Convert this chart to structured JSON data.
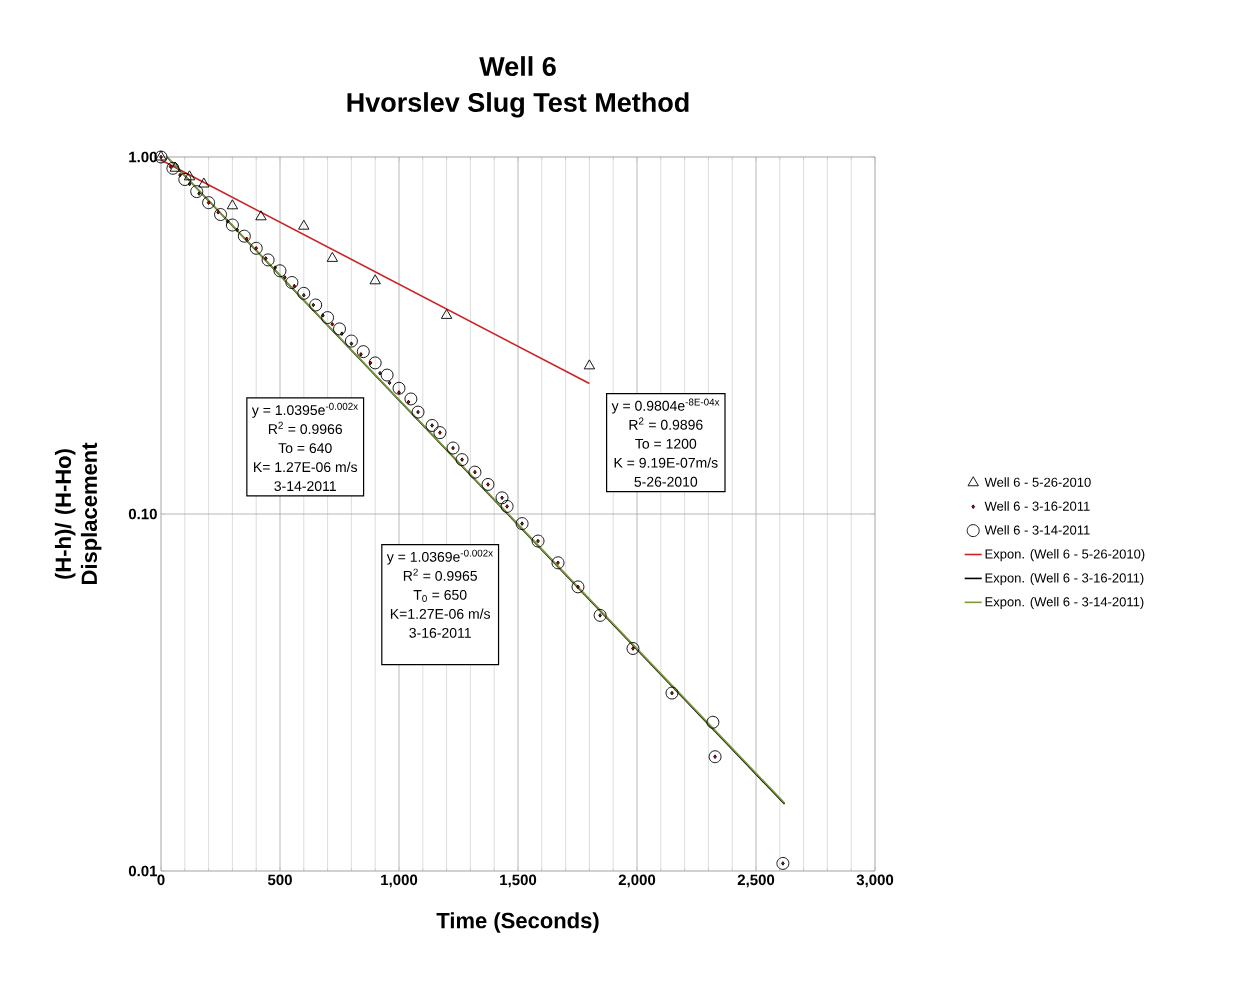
{
  "chart_data": {
    "type": "scatter",
    "title": "Well 6",
    "subtitle": "Hvorslev Slug Test Method",
    "xlabel": "Time (Seconds)",
    "ylabel": "(H-h)/ (H-Ho) Displacement",
    "xlim": [
      0,
      3000
    ],
    "ylim": [
      0.01,
      1
    ],
    "log": "y",
    "grid": true,
    "legend": "right",
    "xticks": [
      0,
      500,
      {
        "value": 1000,
        "label": "1,000"
      },
      {
        "value": 1500,
        "label": "1,500"
      },
      {
        "value": 2000,
        "label": "2,000"
      },
      {
        "value": 2500,
        "label": "2,500"
      },
      {
        "value": 3000,
        "label": "3,000"
      }
    ],
    "yticks": [
      {
        "value": 0.01,
        "label": "0.01"
      },
      {
        "value": 0.1,
        "label": "0.10"
      },
      {
        "value": 1,
        "label": "1.00"
      }
    ],
    "series": [
      {
        "name": "Well 6 - 5-26-2010",
        "marker": "triangle",
        "color": "#000000",
        "x": [
          0,
          60,
          120,
          180,
          300,
          420,
          600,
          720,
          900,
          1200,
          1800
        ],
        "values": [
          1.0,
          0.93,
          0.88,
          0.84,
          0.73,
          0.68,
          0.64,
          0.52,
          0.45,
          0.36,
          0.26
        ]
      },
      {
        "name": "Well 6 - 3-16-2011",
        "marker": "diamond",
        "color": "#000000",
        "x": [
          0,
          40,
          80,
          120,
          160,
          200,
          240,
          280,
          320,
          360,
          400,
          440,
          480,
          520,
          560,
          600,
          640,
          680,
          720,
          760,
          800,
          840,
          880,
          920,
          960,
          1000,
          1040,
          1080,
          1139,
          1172,
          1227,
          1265,
          1319,
          1374,
          1433,
          1454,
          1517,
          1584,
          1668,
          1752,
          1845,
          1983,
          2147,
          2328,
          2613
        ],
        "values": [
          1.0,
          0.94,
          0.89,
          0.84,
          0.79,
          0.745,
          0.7,
          0.66,
          0.625,
          0.59,
          0.555,
          0.52,
          0.49,
          0.46,
          0.435,
          0.41,
          0.385,
          0.36,
          0.34,
          0.32,
          0.3,
          0.28,
          0.265,
          0.248,
          0.233,
          0.219,
          0.206,
          0.193,
          0.177,
          0.169,
          0.153,
          0.142,
          0.131,
          0.121,
          0.111,
          0.105,
          0.094,
          0.084,
          0.073,
          0.0625,
          0.052,
          0.042,
          0.0315,
          0.0209,
          0.0105
        ]
      },
      {
        "name": "Well 6 - 3-14-2011",
        "marker": "circle",
        "color": "#000000",
        "x": [
          0,
          50,
          100,
          150,
          200,
          250,
          300,
          350,
          400,
          450,
          500,
          550,
          600,
          650,
          700,
          750,
          800,
          850,
          900,
          950,
          1000,
          1050,
          1080,
          1139,
          1172,
          1227,
          1265,
          1319,
          1374,
          1433,
          1454,
          1517,
          1584,
          1668,
          1752,
          1845,
          1983,
          2147,
          2319,
          2328,
          2613
        ],
        "values": [
          1.0,
          0.93,
          0.865,
          0.8,
          0.745,
          0.69,
          0.645,
          0.6,
          0.555,
          0.515,
          0.48,
          0.445,
          0.415,
          0.385,
          0.355,
          0.33,
          0.305,
          0.285,
          0.265,
          0.245,
          0.225,
          0.21,
          0.193,
          0.177,
          0.169,
          0.153,
          0.142,
          0.131,
          0.121,
          0.111,
          0.105,
          0.094,
          0.084,
          0.073,
          0.0625,
          0.052,
          0.042,
          0.0315,
          0.0261,
          0.0209,
          0.0105
        ]
      },
      {
        "name": "Expon. (Well 6 - 5-26-2010)",
        "type": "line",
        "marker": "none",
        "color": "#cc2222",
        "x": [
          0,
          1800
        ],
        "values": [
          0.9804,
          0.232
        ]
      },
      {
        "name": "Expon. (Well 6 - 3-16-2011)",
        "type": "line",
        "marker": "none",
        "color": "#000000",
        "x": [
          25,
          2620
        ],
        "values": [
          1.0,
          0.0154
        ]
      },
      {
        "name": "Expon. (Well 6 - 3-14-2011)",
        "type": "line",
        "marker": "none",
        "color": "#7a9a3a",
        "x": [
          25,
          2620
        ],
        "values": [
          1.0,
          0.0155
        ]
      }
    ],
    "annotations": [
      "y = 1.0395e$^{-0.002x}$",
      "R$^{2}$ = 0.9966",
      "To = 640",
      "K= 1.27E-06 m/s",
      "3-14-2011",
      "y = 0.9804e$^{-8E-04x}$",
      "R$^{2}$ = 0.9896",
      "To = 1200",
      "K = 9.19E-07m/s",
      "5-26-2010",
      "y = 1.0369e$^{-0.002x}$",
      "R$^{2}$ = 0.9965",
      "T$_{0}$ = 650",
      "K=1.27E-06 m/s",
      "3-16-2011"
    ]
  }
}
